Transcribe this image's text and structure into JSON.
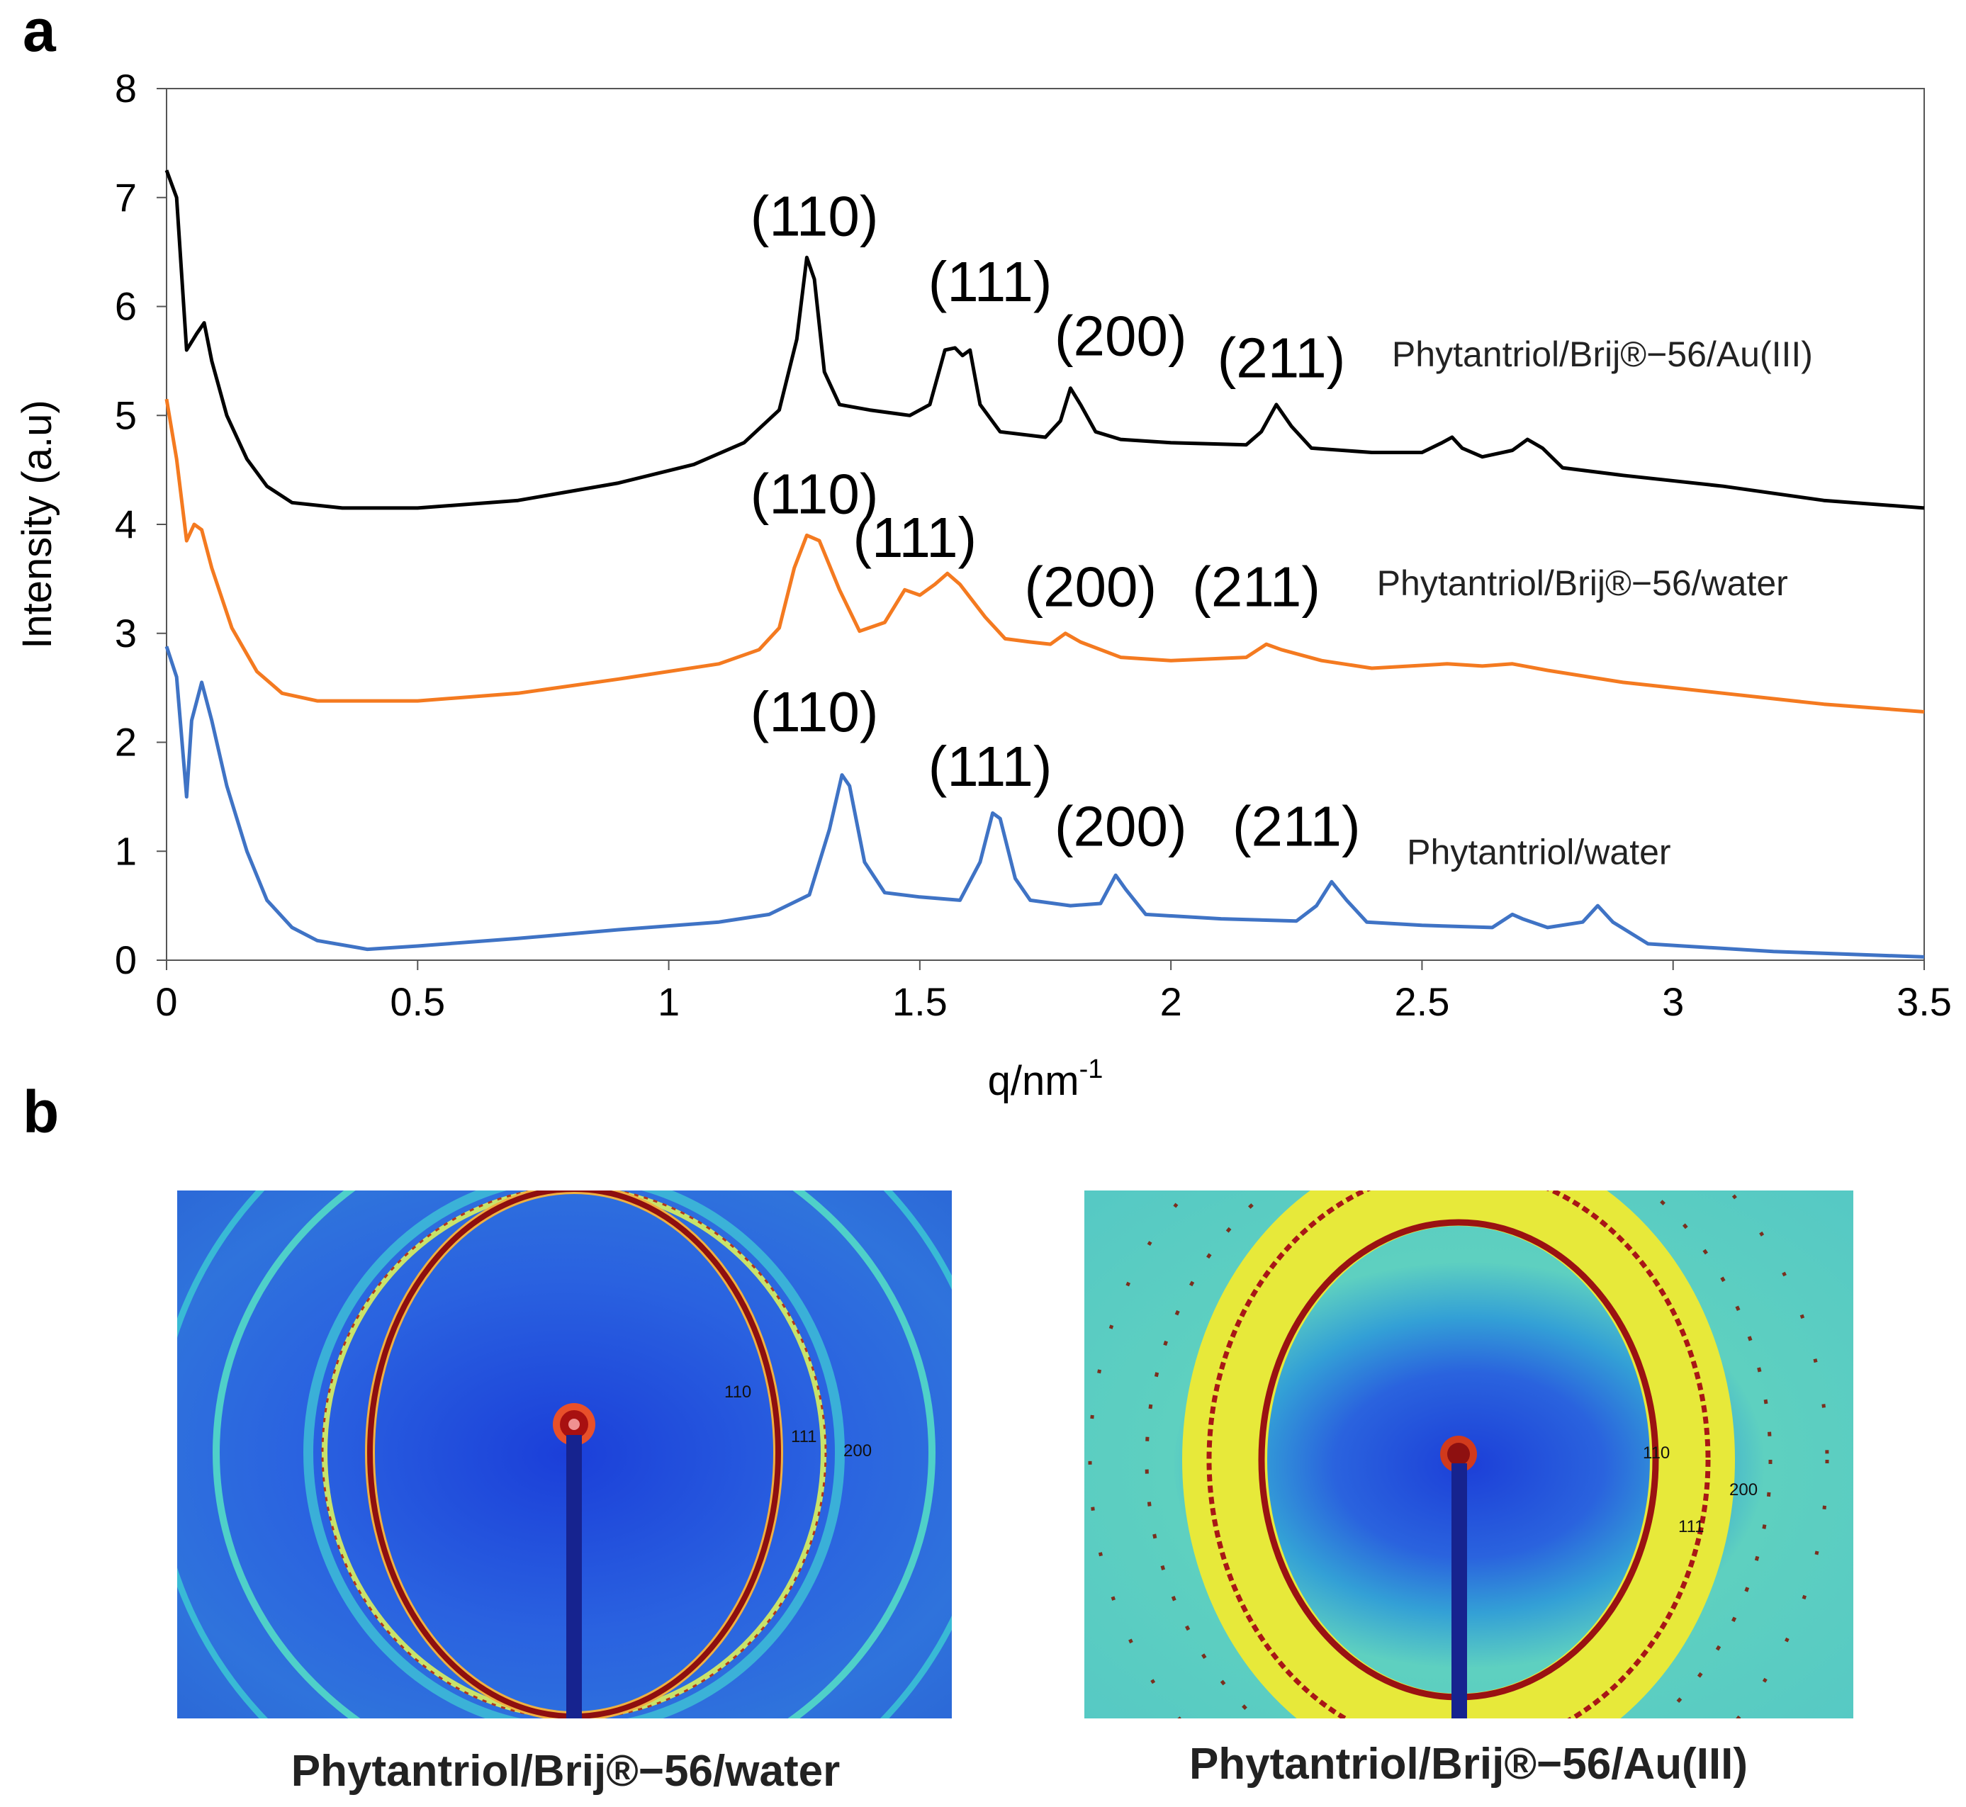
{
  "panels": {
    "a": "a",
    "b": "b"
  },
  "chart_data": {
    "type": "line",
    "title": "",
    "xlabel": "q/nm",
    "xlabel_superscript": "-1",
    "ylabel": "Intensity (a.u)",
    "xlim": [
      0,
      3.5
    ],
    "ylim": [
      0,
      8
    ],
    "x_ticks": [
      "0",
      "0.5",
      "1",
      "1.5",
      "2",
      "2.5",
      "3",
      "3.5"
    ],
    "y_ticks": [
      "0",
      "1",
      "2",
      "3",
      "4",
      "5",
      "6",
      "7",
      "8"
    ],
    "grid": false,
    "series": [
      {
        "name": "Phytantriol/Brij®−56/Au(III)",
        "color": "#000000",
        "points": [
          [
            0,
            7.25
          ],
          [
            0.02,
            7.0
          ],
          [
            0.04,
            5.6
          ],
          [
            0.06,
            5.75
          ],
          [
            0.075,
            5.85
          ],
          [
            0.09,
            5.5
          ],
          [
            0.12,
            5.0
          ],
          [
            0.16,
            4.6
          ],
          [
            0.2,
            4.35
          ],
          [
            0.25,
            4.2
          ],
          [
            0.35,
            4.15
          ],
          [
            0.5,
            4.15
          ],
          [
            0.7,
            4.22
          ],
          [
            0.9,
            4.38
          ],
          [
            1.05,
            4.55
          ],
          [
            1.15,
            4.75
          ],
          [
            1.22,
            5.05
          ],
          [
            1.255,
            5.7
          ],
          [
            1.275,
            6.45
          ],
          [
            1.29,
            6.25
          ],
          [
            1.31,
            5.4
          ],
          [
            1.34,
            5.1
          ],
          [
            1.4,
            5.05
          ],
          [
            1.48,
            5.0
          ],
          [
            1.52,
            5.1
          ],
          [
            1.55,
            5.6
          ],
          [
            1.57,
            5.62
          ],
          [
            1.585,
            5.55
          ],
          [
            1.6,
            5.6
          ],
          [
            1.62,
            5.1
          ],
          [
            1.66,
            4.85
          ],
          [
            1.75,
            4.8
          ],
          [
            1.78,
            4.95
          ],
          [
            1.8,
            5.25
          ],
          [
            1.82,
            5.1
          ],
          [
            1.85,
            4.85
          ],
          [
            1.9,
            4.78
          ],
          [
            2.0,
            4.75
          ],
          [
            2.15,
            4.73
          ],
          [
            2.18,
            4.85
          ],
          [
            2.21,
            5.1
          ],
          [
            2.24,
            4.9
          ],
          [
            2.28,
            4.7
          ],
          [
            2.4,
            4.66
          ],
          [
            2.5,
            4.66
          ],
          [
            2.54,
            4.75
          ],
          [
            2.56,
            4.8
          ],
          [
            2.58,
            4.7
          ],
          [
            2.62,
            4.62
          ],
          [
            2.68,
            4.68
          ],
          [
            2.71,
            4.78
          ],
          [
            2.74,
            4.7
          ],
          [
            2.78,
            4.52
          ],
          [
            2.9,
            4.45
          ],
          [
            3.1,
            4.35
          ],
          [
            3.3,
            4.22
          ],
          [
            3.5,
            4.15
          ]
        ]
      },
      {
        "name": "Phytantriol/Brij®−56/water",
        "color": "#f47a20",
        "points": [
          [
            0,
            5.15
          ],
          [
            0.02,
            4.6
          ],
          [
            0.04,
            3.85
          ],
          [
            0.055,
            4.0
          ],
          [
            0.07,
            3.95
          ],
          [
            0.09,
            3.6
          ],
          [
            0.13,
            3.05
          ],
          [
            0.18,
            2.65
          ],
          [
            0.23,
            2.45
          ],
          [
            0.3,
            2.38
          ],
          [
            0.5,
            2.38
          ],
          [
            0.7,
            2.45
          ],
          [
            0.9,
            2.58
          ],
          [
            1.1,
            2.72
          ],
          [
            1.18,
            2.85
          ],
          [
            1.22,
            3.05
          ],
          [
            1.25,
            3.6
          ],
          [
            1.275,
            3.9
          ],
          [
            1.3,
            3.85
          ],
          [
            1.34,
            3.4
          ],
          [
            1.38,
            3.02
          ],
          [
            1.43,
            3.1
          ],
          [
            1.47,
            3.4
          ],
          [
            1.5,
            3.35
          ],
          [
            1.53,
            3.45
          ],
          [
            1.555,
            3.55
          ],
          [
            1.58,
            3.45
          ],
          [
            1.63,
            3.15
          ],
          [
            1.67,
            2.95
          ],
          [
            1.72,
            2.92
          ],
          [
            1.76,
            2.9
          ],
          [
            1.79,
            3.0
          ],
          [
            1.82,
            2.92
          ],
          [
            1.9,
            2.78
          ],
          [
            2.0,
            2.75
          ],
          [
            2.15,
            2.78
          ],
          [
            2.19,
            2.9
          ],
          [
            2.22,
            2.85
          ],
          [
            2.3,
            2.75
          ],
          [
            2.4,
            2.68
          ],
          [
            2.55,
            2.72
          ],
          [
            2.62,
            2.7
          ],
          [
            2.68,
            2.72
          ],
          [
            2.75,
            2.66
          ],
          [
            2.9,
            2.55
          ],
          [
            3.1,
            2.45
          ],
          [
            3.3,
            2.35
          ],
          [
            3.5,
            2.28
          ]
        ]
      },
      {
        "name": "Phytantriol/water",
        "color": "#3f73c5",
        "points": [
          [
            0,
            2.88
          ],
          [
            0.02,
            2.6
          ],
          [
            0.04,
            1.5
          ],
          [
            0.05,
            2.2
          ],
          [
            0.07,
            2.55
          ],
          [
            0.09,
            2.2
          ],
          [
            0.12,
            1.6
          ],
          [
            0.16,
            1.0
          ],
          [
            0.2,
            0.55
          ],
          [
            0.25,
            0.3
          ],
          [
            0.3,
            0.18
          ],
          [
            0.4,
            0.1
          ],
          [
            0.5,
            0.13
          ],
          [
            0.7,
            0.2
          ],
          [
            0.9,
            0.28
          ],
          [
            1.1,
            0.35
          ],
          [
            1.2,
            0.42
          ],
          [
            1.28,
            0.6
          ],
          [
            1.32,
            1.2
          ],
          [
            1.345,
            1.7
          ],
          [
            1.36,
            1.6
          ],
          [
            1.39,
            0.9
          ],
          [
            1.43,
            0.62
          ],
          [
            1.5,
            0.58
          ],
          [
            1.58,
            0.55
          ],
          [
            1.62,
            0.9
          ],
          [
            1.645,
            1.35
          ],
          [
            1.66,
            1.3
          ],
          [
            1.69,
            0.75
          ],
          [
            1.72,
            0.55
          ],
          [
            1.8,
            0.5
          ],
          [
            1.86,
            0.52
          ],
          [
            1.89,
            0.78
          ],
          [
            1.91,
            0.65
          ],
          [
            1.95,
            0.42
          ],
          [
            2.1,
            0.38
          ],
          [
            2.25,
            0.36
          ],
          [
            2.29,
            0.5
          ],
          [
            2.32,
            0.72
          ],
          [
            2.35,
            0.55
          ],
          [
            2.39,
            0.35
          ],
          [
            2.5,
            0.32
          ],
          [
            2.64,
            0.3
          ],
          [
            2.68,
            0.42
          ],
          [
            2.7,
            0.38
          ],
          [
            2.75,
            0.3
          ],
          [
            2.82,
            0.35
          ],
          [
            2.85,
            0.5
          ],
          [
            2.88,
            0.35
          ],
          [
            2.95,
            0.15
          ],
          [
            3.02,
            0.13
          ],
          [
            3.2,
            0.08
          ],
          [
            3.5,
            0.03
          ]
        ]
      }
    ],
    "annotations": [
      {
        "text": "(110)",
        "x": 1.29,
        "y": 6.65
      },
      {
        "text": "(111)",
        "x": 1.64,
        "y": 6.05
      },
      {
        "text": "(200)",
        "x": 1.9,
        "y": 5.55
      },
      {
        "text": "(211)",
        "x": 2.22,
        "y": 5.35
      },
      {
        "text": "(110)",
        "x": 1.29,
        "y": 4.1
      },
      {
        "text": "(111)",
        "x": 1.49,
        "y": 3.7
      },
      {
        "text": "(200)",
        "x": 1.84,
        "y": 3.25
      },
      {
        "text": "(211)",
        "x": 2.17,
        "y": 3.25
      },
      {
        "text": "(110)",
        "x": 1.29,
        "y": 2.1
      },
      {
        "text": "(111)",
        "x": 1.64,
        "y": 1.6
      },
      {
        "text": "(200)",
        "x": 1.9,
        "y": 1.05
      },
      {
        "text": "(211)",
        "x": 2.25,
        "y": 1.05
      }
    ],
    "legend_labels": [
      {
        "text": "Phytantriol/Brij®−56/Au(III)",
        "x": 2.44,
        "y": 5.45
      },
      {
        "text": "Phytantriol/Brij®−56/water",
        "x": 2.41,
        "y": 3.35
      },
      {
        "text": "Phytantriol/water",
        "x": 2.47,
        "y": 0.88
      }
    ]
  },
  "saxs_images": [
    {
      "caption": "Phytantriol/Brij®−56/water",
      "ring_labels": [
        "110",
        "111",
        "200"
      ]
    },
    {
      "caption": "Phytantriol/Brij®−56/Au(III)",
      "ring_labels": [
        "110",
        "111",
        "200"
      ]
    }
  ]
}
